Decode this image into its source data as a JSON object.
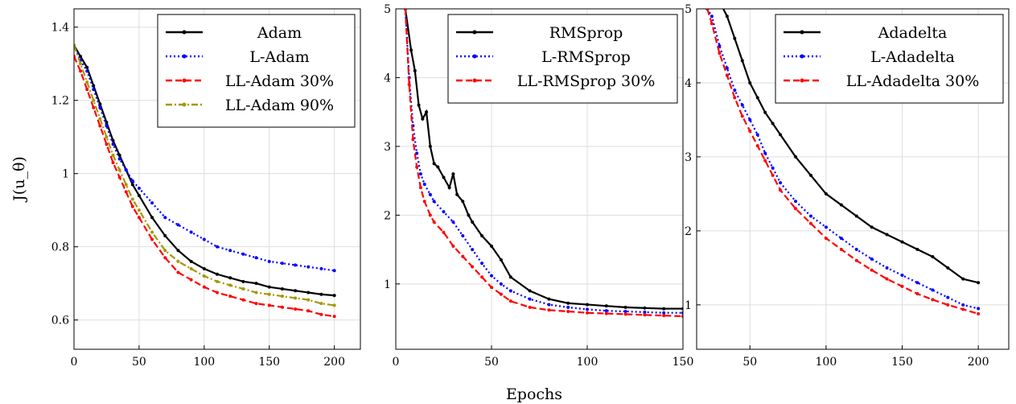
{
  "chart_data": [
    {
      "type": "line",
      "ylabel": "J(u_θ)",
      "xlim": [
        0,
        220
      ],
      "ylim": [
        0.52,
        1.45
      ],
      "xticks": [
        0,
        50,
        100,
        150,
        200
      ],
      "yticks": [
        0.6,
        0.8,
        1,
        1.2,
        1.4
      ],
      "ytick_labels": [
        "0.6",
        "0.8",
        "1",
        "1.2",
        "1.4"
      ],
      "grid": true,
      "legend_position": "top-right",
      "series": [
        {
          "name": "Adam",
          "color": "#000000",
          "dash": "solid",
          "x": [
            0,
            5,
            10,
            15,
            20,
            25,
            30,
            35,
            40,
            45,
            50,
            60,
            70,
            80,
            90,
            100,
            110,
            120,
            130,
            140,
            150,
            160,
            170,
            180,
            190,
            200
          ],
          "y": [
            1.35,
            1.32,
            1.29,
            1.24,
            1.19,
            1.14,
            1.09,
            1.05,
            1.01,
            0.97,
            0.94,
            0.88,
            0.83,
            0.79,
            0.76,
            0.74,
            0.725,
            0.715,
            0.705,
            0.7,
            0.69,
            0.685,
            0.68,
            0.675,
            0.67,
            0.667
          ]
        },
        {
          "name": "L-Adam",
          "color": "#0000ff",
          "dash": "dotted",
          "x": [
            0,
            5,
            10,
            15,
            20,
            25,
            30,
            35,
            40,
            45,
            50,
            60,
            70,
            80,
            90,
            100,
            110,
            120,
            130,
            140,
            150,
            160,
            170,
            180,
            190,
            200
          ],
          "y": [
            1.35,
            1.31,
            1.28,
            1.23,
            1.18,
            1.13,
            1.08,
            1.04,
            1.01,
            0.98,
            0.96,
            0.92,
            0.88,
            0.86,
            0.84,
            0.82,
            0.8,
            0.79,
            0.78,
            0.77,
            0.76,
            0.755,
            0.75,
            0.745,
            0.74,
            0.735
          ]
        },
        {
          "name": "LL-Adam 30%",
          "color": "#ff0000",
          "dash": "dashed",
          "x": [
            0,
            5,
            10,
            15,
            20,
            25,
            30,
            35,
            40,
            45,
            50,
            60,
            70,
            80,
            90,
            100,
            110,
            120,
            130,
            140,
            150,
            160,
            170,
            180,
            190,
            200
          ],
          "y": [
            1.32,
            1.28,
            1.23,
            1.18,
            1.13,
            1.08,
            1.03,
            0.99,
            0.95,
            0.91,
            0.88,
            0.82,
            0.77,
            0.73,
            0.71,
            0.69,
            0.675,
            0.665,
            0.655,
            0.645,
            0.64,
            0.635,
            0.63,
            0.625,
            0.615,
            0.61
          ]
        },
        {
          "name": "LL-Adam 90%",
          "color": "#a69700",
          "dash": "dashdot",
          "x": [
            0,
            5,
            10,
            15,
            20,
            25,
            30,
            35,
            40,
            45,
            50,
            60,
            70,
            80,
            90,
            100,
            110,
            120,
            130,
            140,
            150,
            160,
            170,
            180,
            190,
            200
          ],
          "y": [
            1.35,
            1.3,
            1.25,
            1.2,
            1.15,
            1.1,
            1.05,
            1.01,
            0.97,
            0.93,
            0.9,
            0.84,
            0.79,
            0.76,
            0.74,
            0.72,
            0.705,
            0.695,
            0.685,
            0.675,
            0.67,
            0.665,
            0.66,
            0.655,
            0.645,
            0.64
          ]
        }
      ]
    },
    {
      "type": "line",
      "xlabel": "Epochs",
      "xlim": [
        0,
        150
      ],
      "ylim": [
        0.05,
        5
      ],
      "xticks": [
        0,
        50,
        100,
        150
      ],
      "yticks": [
        1,
        2,
        3,
        4,
        5
      ],
      "ytick_labels": [
        "1",
        "2",
        "3",
        "4",
        "5"
      ],
      "grid": true,
      "legend_position": "top-right",
      "series": [
        {
          "name": "RMSprop",
          "color": "#000000",
          "dash": "solid",
          "x": [
            5,
            8,
            10,
            12,
            14,
            16,
            18,
            20,
            22,
            25,
            28,
            30,
            32,
            35,
            38,
            40,
            45,
            50,
            55,
            60,
            70,
            80,
            90,
            100,
            110,
            120,
            130,
            140,
            150
          ],
          "y": [
            5.0,
            4.4,
            4.1,
            3.6,
            3.4,
            3.5,
            3.0,
            2.75,
            2.7,
            2.55,
            2.4,
            2.6,
            2.3,
            2.2,
            2.0,
            1.9,
            1.7,
            1.55,
            1.35,
            1.1,
            0.9,
            0.78,
            0.72,
            0.7,
            0.68,
            0.66,
            0.65,
            0.64,
            0.64
          ]
        },
        {
          "name": "L-RMSprop",
          "color": "#0000ff",
          "dash": "dotted",
          "x": [
            5,
            7,
            9,
            11,
            13,
            15,
            18,
            20,
            25,
            30,
            35,
            40,
            45,
            50,
            55,
            60,
            70,
            80,
            90,
            100,
            110,
            120,
            130,
            140,
            150
          ],
          "y": [
            5.0,
            4.0,
            3.3,
            2.9,
            2.6,
            2.45,
            2.3,
            2.2,
            2.05,
            1.9,
            1.7,
            1.5,
            1.3,
            1.12,
            1.0,
            0.9,
            0.78,
            0.7,
            0.66,
            0.63,
            0.61,
            0.6,
            0.59,
            0.58,
            0.58
          ]
        },
        {
          "name": "LL-RMSprop 30%",
          "color": "#ff0000",
          "dash": "dashed",
          "x": [
            5,
            7,
            9,
            11,
            13,
            15,
            18,
            20,
            25,
            30,
            35,
            40,
            45,
            50,
            55,
            60,
            70,
            80,
            90,
            100,
            110,
            120,
            130,
            140,
            150
          ],
          "y": [
            5.0,
            3.9,
            3.1,
            2.7,
            2.4,
            2.2,
            2.0,
            1.9,
            1.75,
            1.55,
            1.4,
            1.25,
            1.1,
            0.95,
            0.85,
            0.75,
            0.66,
            0.62,
            0.6,
            0.58,
            0.57,
            0.56,
            0.55,
            0.54,
            0.53
          ]
        }
      ]
    },
    {
      "type": "line",
      "xlim": [
        15,
        220
      ],
      "ylim": [
        0.4,
        5
      ],
      "xticks": [
        50,
        100,
        150,
        200
      ],
      "yticks": [
        1,
        2,
        3,
        4,
        5
      ],
      "ytick_labels": [
        "1",
        "2",
        "3",
        "4",
        "5"
      ],
      "grid": true,
      "legend_position": "top-right",
      "series": [
        {
          "name": "Adadelta",
          "color": "#000000",
          "dash": "solid",
          "x": [
            25,
            30,
            35,
            40,
            45,
            50,
            55,
            60,
            65,
            70,
            80,
            90,
            100,
            110,
            120,
            130,
            140,
            150,
            160,
            170,
            180,
            190,
            200
          ],
          "y": [
            5.3,
            5.1,
            4.9,
            4.6,
            4.3,
            4.0,
            3.8,
            3.6,
            3.45,
            3.3,
            3.0,
            2.75,
            2.5,
            2.35,
            2.2,
            2.05,
            1.95,
            1.85,
            1.75,
            1.65,
            1.5,
            1.35,
            1.3
          ]
        },
        {
          "name": "L-Adadelta",
          "color": "#0000ff",
          "dash": "dotted",
          "x": [
            22,
            25,
            30,
            35,
            40,
            45,
            50,
            55,
            60,
            65,
            70,
            80,
            90,
            100,
            110,
            120,
            130,
            140,
            150,
            160,
            170,
            180,
            190,
            200
          ],
          "y": [
            5.0,
            4.9,
            4.5,
            4.2,
            3.9,
            3.7,
            3.5,
            3.3,
            3.05,
            2.85,
            2.65,
            2.4,
            2.2,
            2.05,
            1.9,
            1.75,
            1.62,
            1.5,
            1.4,
            1.3,
            1.2,
            1.1,
            1.0,
            0.95
          ]
        },
        {
          "name": "LL-Adadelta 30%",
          "color": "#ff0000",
          "dash": "dashed",
          "x": [
            22,
            25,
            30,
            35,
            40,
            45,
            50,
            55,
            60,
            65,
            70,
            80,
            90,
            100,
            110,
            120,
            130,
            140,
            150,
            160,
            170,
            180,
            190,
            200
          ],
          "y": [
            5.0,
            4.8,
            4.4,
            4.1,
            3.8,
            3.55,
            3.35,
            3.15,
            2.95,
            2.75,
            2.55,
            2.3,
            2.1,
            1.9,
            1.75,
            1.6,
            1.47,
            1.35,
            1.25,
            1.15,
            1.07,
            1.0,
            0.94,
            0.88
          ]
        }
      ]
    }
  ]
}
